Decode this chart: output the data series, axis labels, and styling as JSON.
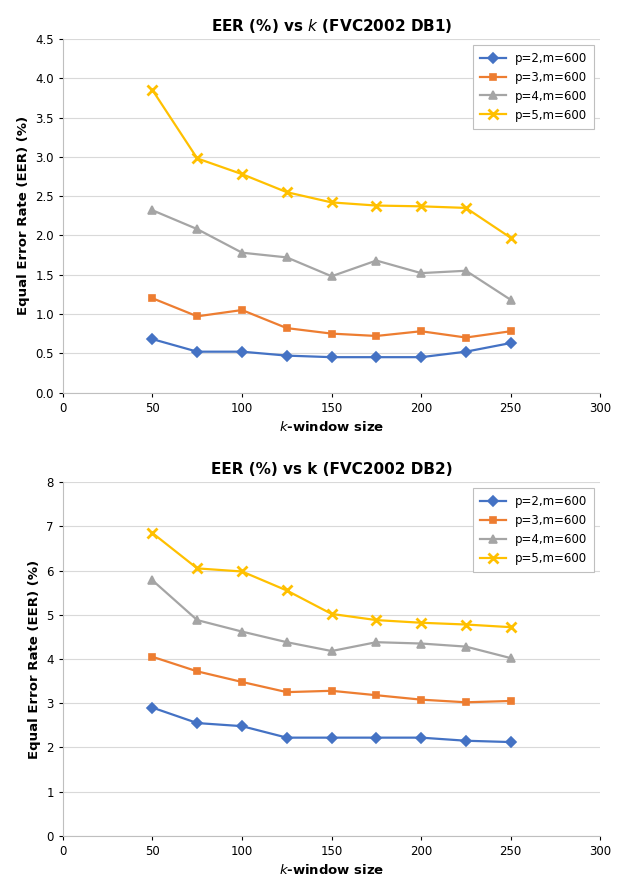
{
  "db1": {
    "title": "EER (%) vs κ (FVC2002 DB1)",
    "xlabel": "κ-window size",
    "ylabel": "Equal Error Rate (EER) (%)",
    "xlim": [
      0,
      300
    ],
    "ylim": [
      0,
      4.5
    ],
    "yticks": [
      0,
      0.5,
      1.0,
      1.5,
      2.0,
      2.5,
      3.0,
      3.5,
      4.0,
      4.5
    ],
    "xticks": [
      0,
      50,
      100,
      150,
      200,
      250,
      300
    ],
    "series": [
      {
        "label": "p=2,m=600",
        "color": "#4472C4",
        "marker": "D",
        "x": [
          50,
          75,
          100,
          125,
          150,
          175,
          200,
          225,
          250
        ],
        "y": [
          0.68,
          0.52,
          0.52,
          0.47,
          0.45,
          0.45,
          0.45,
          0.52,
          0.63
        ]
      },
      {
        "label": "p=3,m=600",
        "color": "#ED7D31",
        "marker": "s",
        "x": [
          50,
          75,
          100,
          125,
          150,
          175,
          200,
          225,
          250
        ],
        "y": [
          1.2,
          0.97,
          1.05,
          0.82,
          0.75,
          0.72,
          0.78,
          0.7,
          0.78
        ]
      },
      {
        "label": "p=4,m=600",
        "color": "#A5A5A5",
        "marker": "^",
        "x": [
          50,
          75,
          100,
          125,
          150,
          175,
          200,
          225,
          250
        ],
        "y": [
          2.32,
          2.08,
          1.78,
          1.72,
          1.48,
          1.68,
          1.52,
          1.55,
          1.18
        ]
      },
      {
        "label": "p=5,m=600",
        "color": "#FFC000",
        "marker": "x",
        "x": [
          50,
          75,
          100,
          125,
          150,
          175,
          200,
          225,
          250
        ],
        "y": [
          3.85,
          2.98,
          2.78,
          2.55,
          2.42,
          2.38,
          2.37,
          2.35,
          1.97
        ]
      }
    ]
  },
  "db2": {
    "title": "EER (%) vs k (FVC2002 DB2)",
    "xlabel": "κ-window size",
    "ylabel": "Equal Error Rate (EER) (%)",
    "xlim": [
      0,
      300
    ],
    "ylim": [
      0,
      8
    ],
    "yticks": [
      0,
      1,
      2,
      3,
      4,
      5,
      6,
      7,
      8
    ],
    "xticks": [
      0,
      50,
      100,
      150,
      200,
      250,
      300
    ],
    "series": [
      {
        "label": "p=2,m=600",
        "color": "#4472C4",
        "marker": "D",
        "x": [
          50,
          75,
          100,
          125,
          150,
          175,
          200,
          225,
          250
        ],
        "y": [
          2.9,
          2.55,
          2.48,
          2.22,
          2.22,
          2.22,
          2.22,
          2.15,
          2.12
        ]
      },
      {
        "label": "p=3,m=600",
        "color": "#ED7D31",
        "marker": "s",
        "x": [
          50,
          75,
          100,
          125,
          150,
          175,
          200,
          225,
          250
        ],
        "y": [
          4.05,
          3.72,
          3.48,
          3.25,
          3.28,
          3.18,
          3.08,
          3.02,
          3.05
        ]
      },
      {
        "label": "p=4,m=600",
        "color": "#A5A5A5",
        "marker": "^",
        "x": [
          50,
          75,
          100,
          125,
          150,
          175,
          200,
          225,
          250
        ],
        "y": [
          5.78,
          4.88,
          4.62,
          4.38,
          4.18,
          4.38,
          4.35,
          4.28,
          4.02
        ]
      },
      {
        "label": "p=5,m=600",
        "color": "#FFC000",
        "marker": "x",
        "x": [
          50,
          75,
          100,
          125,
          150,
          175,
          200,
          225,
          250
        ],
        "y": [
          6.85,
          6.05,
          5.98,
          5.55,
          5.02,
          4.88,
          4.82,
          4.78,
          4.72
        ]
      }
    ]
  },
  "plot_bg_color": "#FFFFFF",
  "fig_bg_color": "#FFFFFF",
  "grid_color": "#D9D9D9",
  "legend_fontsize": 8.5,
  "axis_label_fontsize": 9.5,
  "title_fontsize": 11,
  "tick_fontsize": 8.5,
  "linewidth": 1.6,
  "markersize": 5,
  "marker_x_size": 7
}
